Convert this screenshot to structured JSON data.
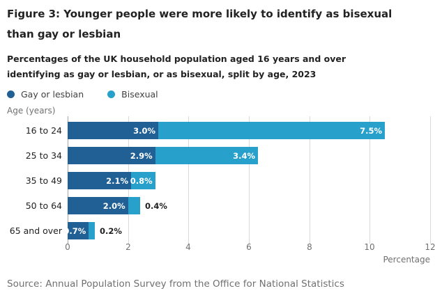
{
  "header": {
    "title_lines": [
      "Figure 3: Younger people were more likely to identify as bisexual",
      "than gay or lesbian"
    ],
    "subtitle_lines": [
      "Percentages of the UK household population aged 16 years and over",
      "identifying as gay or lesbian, or as bisexual, split by age, 2023"
    ]
  },
  "chart_data": {
    "type": "bar",
    "orientation": "horizontal",
    "stacked": true,
    "title": "Figure 3: Younger people were more likely to identify as bisexual than gay or lesbian",
    "subtitle": "Percentages of the UK household population aged 16 years and over identifying as gay or lesbian, or as bisexual, split by age, 2023",
    "axis_label_y": "Age (years)",
    "xlabel": "Percentage",
    "categories": [
      "16 to 24",
      "25 to 34",
      "35 to 49",
      "50 to 64",
      "65 and over"
    ],
    "series": [
      {
        "name": "Gay or lesbian",
        "color": "#206095",
        "values": [
          3.0,
          2.9,
          2.1,
          2.0,
          0.7
        ],
        "labels": [
          "3.0%",
          "2.9%",
          "2.1%",
          "2.0%",
          "0.7%"
        ]
      },
      {
        "name": "Bisexual",
        "color": "#27A0CC",
        "values": [
          7.5,
          3.4,
          0.8,
          0.4,
          0.2
        ],
        "labels": [
          "7.5%",
          "3.4%",
          "0.8%",
          "0.4%",
          "0.2%"
        ]
      }
    ],
    "xlim": [
      0,
      12
    ],
    "xticks": [
      0,
      2,
      4,
      6,
      8,
      10,
      12
    ],
    "grid": true,
    "legend_position": "top-left"
  },
  "colors": {
    "bar_dark_blue": "#206095",
    "bar_light_blue": "#27A0CC",
    "gridline": "#d9d9d9",
    "axis_line": "#a6a6a6",
    "text_dark": "#222222",
    "text_gray": "#707071",
    "legend_text": "#414042",
    "label_inside": "#ffffff"
  },
  "source": "Source: Annual Population Survey from the Office for National Statistics"
}
